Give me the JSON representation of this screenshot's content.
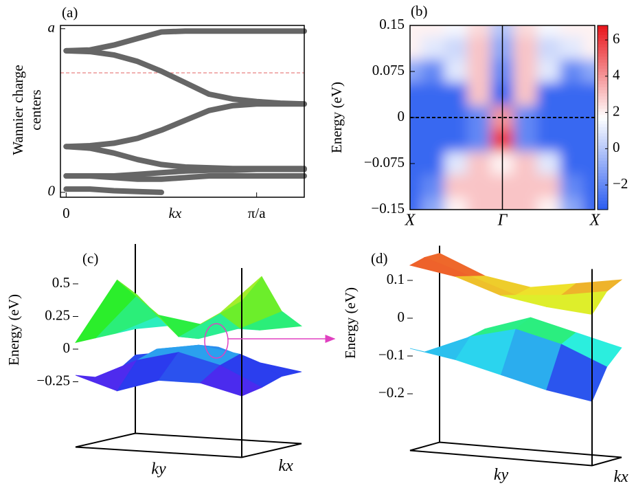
{
  "chart_data": [
    {
      "type": "line",
      "panel_label": "(a)",
      "ylabel": [
        "Wannier charge",
        "centers"
      ],
      "xlabel": "kx",
      "x": [
        0,
        0.125,
        0.25,
        0.375,
        0.5,
        0.625,
        0.75,
        0.875,
        1,
        1.125,
        1.25
      ],
      "series": [
        {
          "color": "#666666",
          "values": [
            0.865,
            0.86,
            0.84,
            0.8,
            0.74,
            0.67,
            0.6,
            0.57,
            0.555,
            0.545,
            0.54
          ]
        },
        {
          "color": "#666666",
          "values": [
            0.865,
            0.87,
            0.9,
            0.94,
            0.98,
            0.985,
            0.985,
            0.985,
            0.985,
            0.985,
            0.985
          ]
        },
        {
          "color": "#666666",
          "values": [
            0.28,
            0.285,
            0.3,
            0.33,
            0.38,
            0.44,
            0.5,
            0.53,
            0.54,
            0.54,
            0.54
          ]
        },
        {
          "color": "#666666",
          "values": [
            0.28,
            0.27,
            0.24,
            0.2,
            0.17,
            0.155,
            0.15,
            0.145,
            0.145,
            0.145,
            0.145
          ]
        },
        {
          "color": "#666666",
          "values": [
            0.1,
            0.1,
            0.1,
            0.11,
            0.12,
            0.13,
            0.135,
            0.135,
            0.14,
            0.14,
            0.14
          ]
        },
        {
          "color": "#666666",
          "values": [
            0.1,
            0.1,
            0.09,
            0.08,
            0.08,
            0.09,
            0.1,
            0.1,
            0.1,
            0.1,
            0.1
          ]
        },
        {
          "color": "#666666",
          "values": [
            0.02,
            0.02,
            0.01,
            0.005,
            0.0,
            null,
            null,
            null,
            null,
            null,
            null
          ]
        }
      ],
      "xlim": [
        -0.03,
        1.25
      ],
      "ylim": [
        -0.03,
        1.02
      ],
      "xticks": [
        0,
        {
          "value": 1,
          "label": "π/a"
        }
      ],
      "yticks": [
        0,
        {
          "value": 1,
          "label": "a"
        }
      ],
      "refline": {
        "value": 0.73,
        "color": "#e06060"
      }
    },
    {
      "type": "heatmap",
      "panel_label": "(b)",
      "ylabel": "Energy (eV)",
      "x": [
        -1,
        -0.75,
        -0.5,
        -0.25,
        0,
        0.25,
        0.5,
        0.75,
        1
      ],
      "y": [
        0.15,
        0.1125,
        0.075,
        0.0375,
        0,
        -0.0375,
        -0.075,
        -0.1125,
        -0.15
      ],
      "z": [
        [
          2,
          2,
          1.5,
          2.5,
          0,
          2.5,
          1.5,
          2,
          2
        ],
        [
          2,
          1,
          0.5,
          3,
          -1,
          3,
          0.5,
          1,
          2
        ],
        [
          -1,
          -2,
          1,
          3,
          -2,
          3,
          1,
          -2,
          -1
        ],
        [
          -3,
          -3,
          -3,
          3,
          -3,
          3,
          -3,
          -3,
          -3
        ],
        [
          -3,
          -3,
          -3,
          -2,
          4,
          -2,
          -3,
          -3,
          -3
        ],
        [
          -3,
          -3,
          -3,
          -2,
          6,
          -2,
          -3,
          -3,
          -3
        ],
        [
          -3,
          -3,
          1,
          3,
          2,
          3,
          1,
          -3,
          -3
        ],
        [
          -3,
          -2,
          3,
          3,
          3,
          3,
          3,
          -2,
          -3
        ],
        [
          -3,
          -1,
          2,
          3,
          3,
          3,
          2,
          -1,
          -3
        ]
      ],
      "xlim": [
        -1,
        1
      ],
      "ylim": [
        -0.15,
        0.15
      ],
      "xticks": [
        {
          "value": -1,
          "label": "X"
        },
        {
          "value": 0,
          "label": "Γ"
        },
        {
          "value": 1,
          "label": "X"
        }
      ],
      "yticks": [
        {
          "value": -0.15,
          "label": "−0.15"
        },
        {
          "value": -0.075,
          "label": "−0.075"
        },
        0,
        0.075,
        0.15
      ],
      "zlim": [
        -3.36,
        6.8
      ],
      "zticks": [
        {
          "value": -2,
          "label": "−2"
        },
        0,
        2,
        4,
        6
      ],
      "colors": [
        "#2a5cf0",
        "#ffffff",
        "#e8151b"
      ],
      "hline": 0,
      "vline": 0
    },
    {
      "type": "surface",
      "panel_label": "(c)",
      "zlabel": "Energy (eV)",
      "xlabel": "ky",
      "ylabel": "kx",
      "zlim": [
        -0.75,
        0.7
      ],
      "zticks": [
        {
          "value": -0.25,
          "label": "−0.25"
        },
        0,
        0.25,
        0.5
      ],
      "clim": [
        -0.3,
        0.7
      ],
      "surfaces": [
        [
          [
            -0.2,
            -0.3,
            -0.2,
            -0.2,
            -0.28
          ],
          [
            -0.25,
            -0.1,
            -0.02,
            -0.1,
            -0.25
          ],
          [
            -0.25,
            -0.05,
            0.0,
            -0.05,
            -0.2
          ],
          [
            -0.15,
            -0.1,
            -0.05,
            -0.15,
            -0.2
          ]
        ],
        [
          [
            0.05,
            0.55,
            0.3,
            0.25,
            0.45
          ],
          [
            0.05,
            0.4,
            0.1,
            0.3,
            0.6
          ],
          [
            0.05,
            0.2,
            0.05,
            0.15,
            0.3
          ],
          [
            0.05,
            0.1,
            0.1,
            0.1,
            0.15
          ]
        ]
      ]
    },
    {
      "type": "surface",
      "panel_label": "(d)",
      "zlabel": "Energy (eV)",
      "xlabel": "ky",
      "ylabel": "kx",
      "zlim": [
        -0.35,
        0.17
      ],
      "zticks": [
        {
          "value": -0.2,
          "label": "−0.2"
        },
        {
          "value": -0.1,
          "label": "−0.1"
        },
        0,
        0.1
      ],
      "clim": [
        -0.18,
        0.15
      ],
      "surfaces": [
        [
          [
            -0.08,
            -0.1,
            -0.13,
            -0.16,
            -0.18
          ],
          [
            -0.1,
            -0.05,
            -0.02,
            -0.05,
            -0.1
          ],
          [
            -0.11,
            -0.04,
            0.0,
            -0.03,
            -0.06
          ]
        ],
        [
          [
            0.14,
            0.12,
            0.08,
            0.06,
            0.05
          ],
          [
            0.15,
            0.11,
            0.07,
            0.08,
            0.1
          ],
          [
            0.15,
            0.1,
            0.08,
            0.1,
            0.12
          ]
        ]
      ]
    }
  ]
}
